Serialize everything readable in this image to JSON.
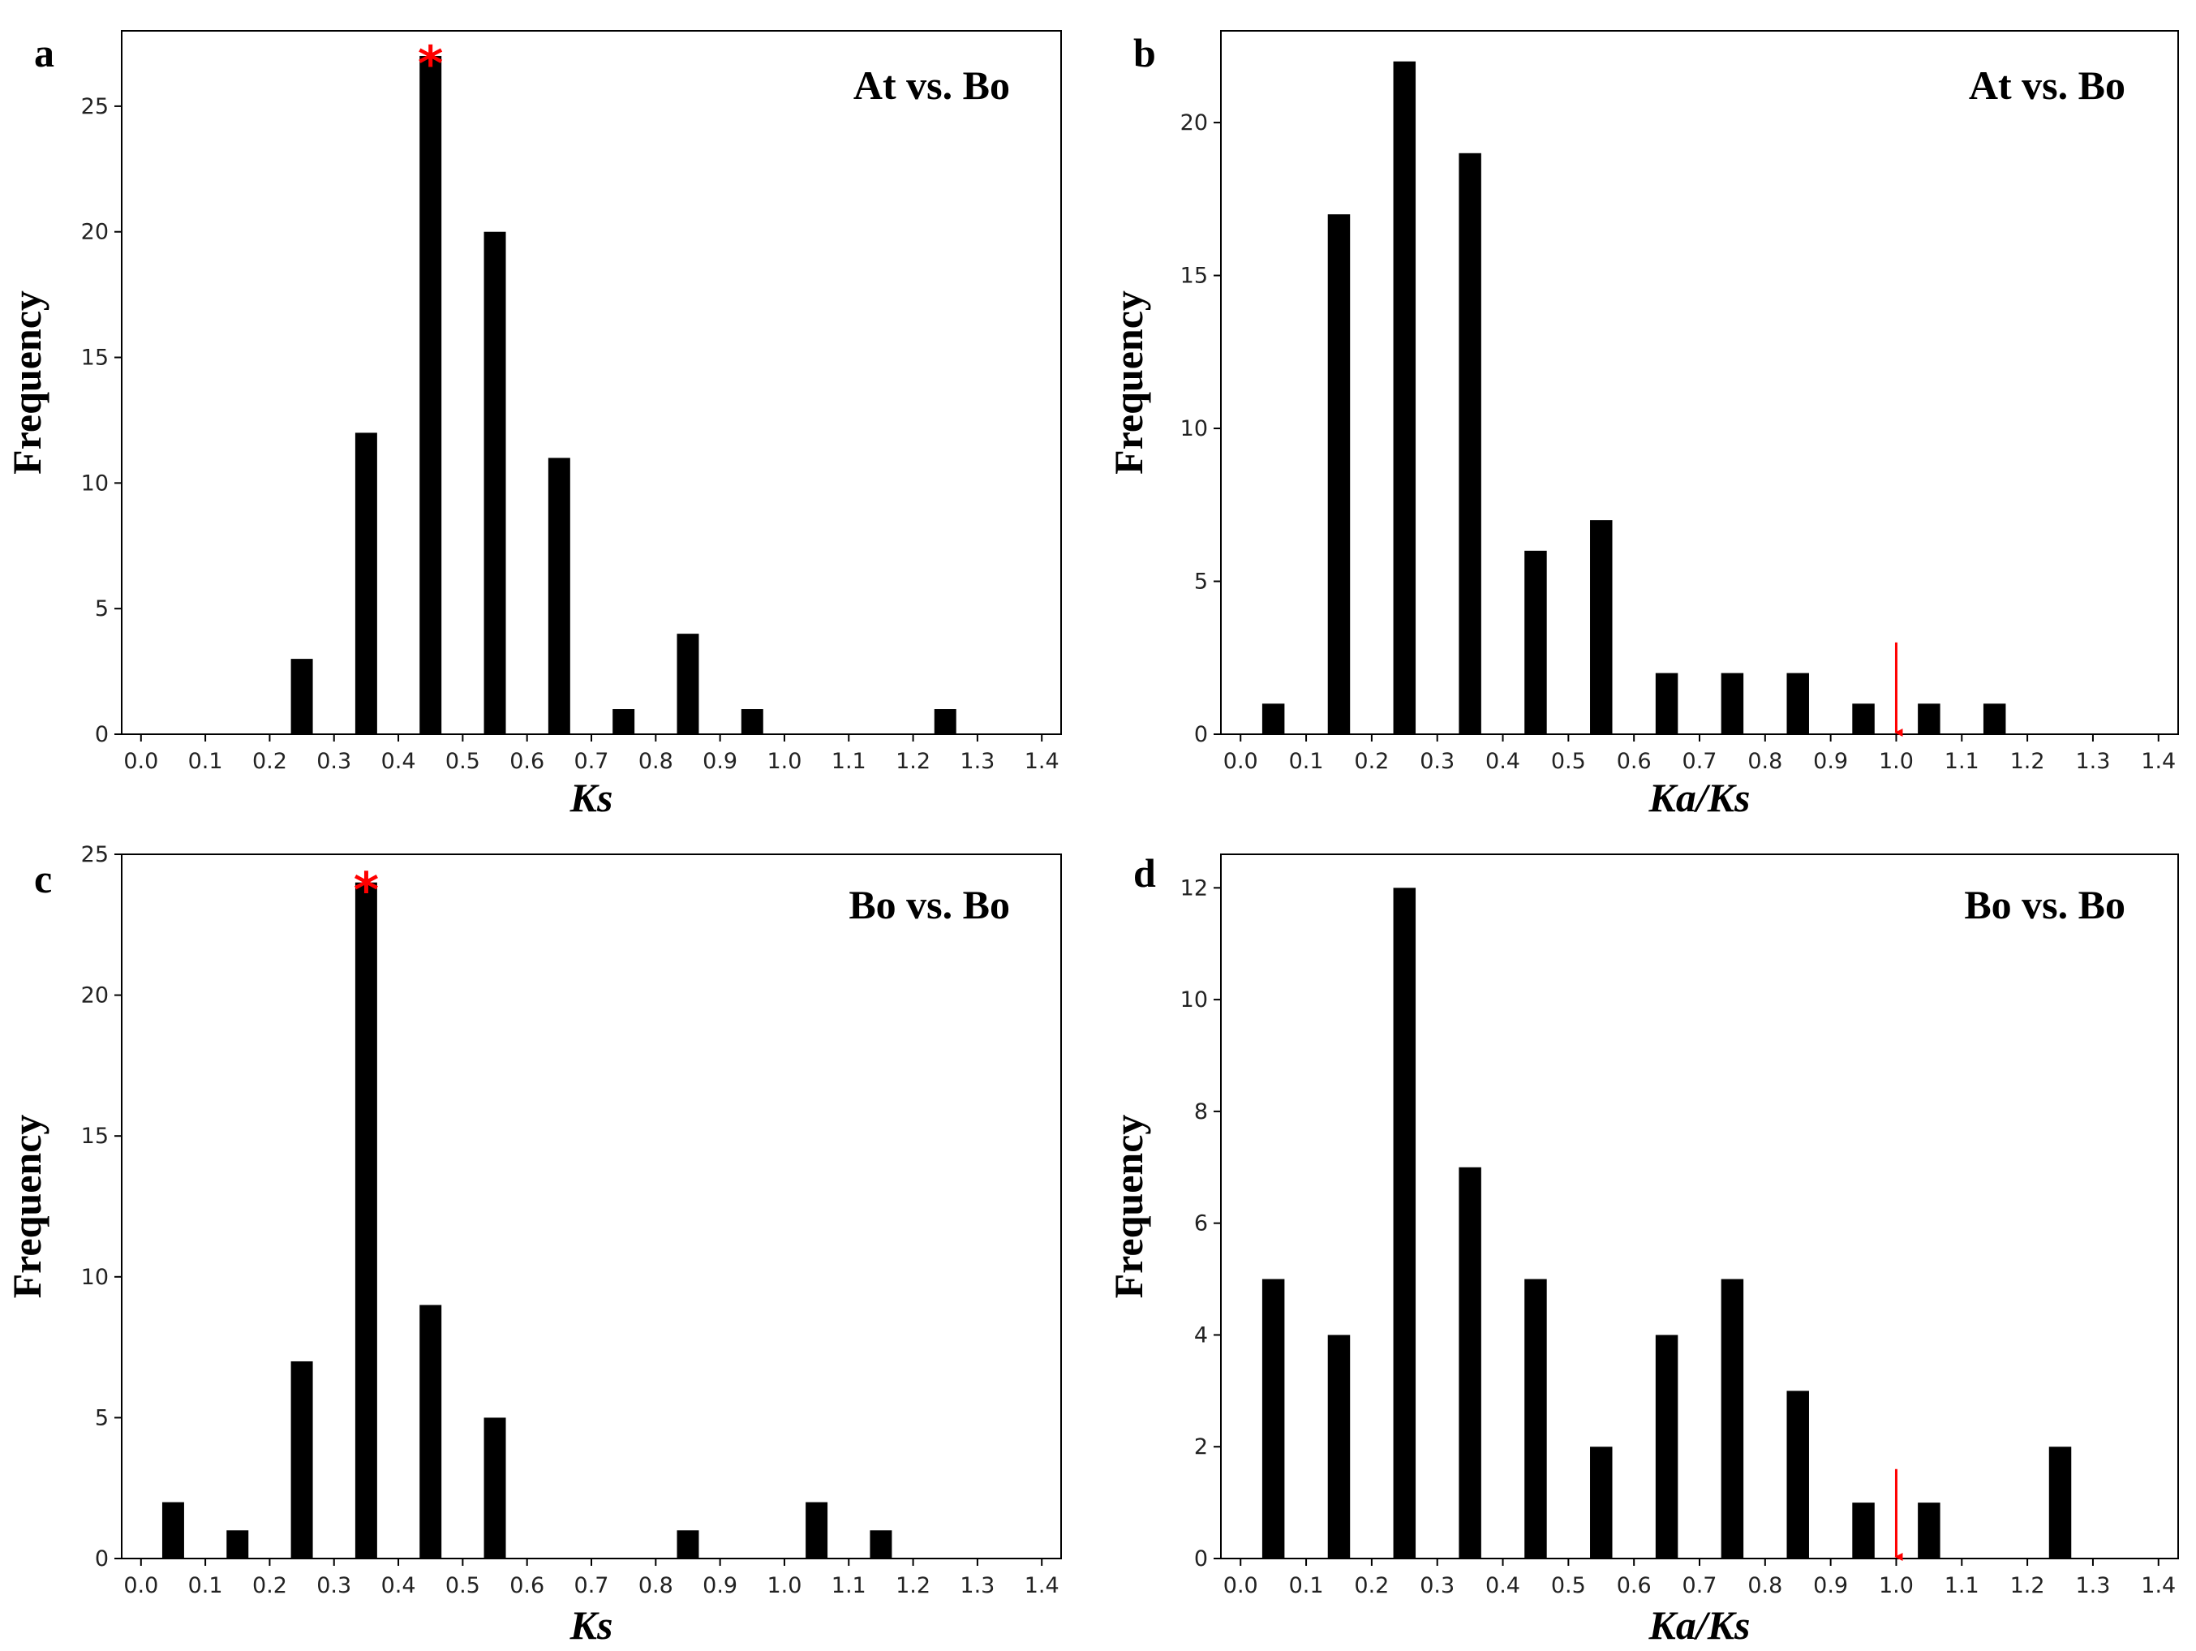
{
  "chart_data": [
    {
      "panel": "a",
      "type": "bar",
      "annotation": "At vs. Bo",
      "xlabel": "Ks",
      "ylabel": "Frequency",
      "x": [
        0.25,
        0.35,
        0.45,
        0.55,
        0.65,
        0.75,
        0.85,
        0.95,
        1.25
      ],
      "values": [
        3,
        12,
        27,
        20,
        11,
        1,
        4,
        1,
        1
      ],
      "xlim": [
        -0.03,
        1.43
      ],
      "ylim": [
        0,
        28
      ],
      "xticks": [
        0.0,
        0.1,
        0.2,
        0.3,
        0.4,
        0.5,
        0.6,
        0.7,
        0.8,
        0.9,
        1.0,
        1.1,
        1.2,
        1.3,
        1.4
      ],
      "yticks": [
        0,
        5,
        10,
        15,
        20,
        25
      ],
      "marker": {
        "type": "star",
        "label": "*",
        "x": 0.45
      }
    },
    {
      "panel": "b",
      "type": "bar",
      "annotation": "At vs. Bo",
      "xlabel": "Ka/Ks",
      "ylabel": "Frequency",
      "x": [
        0.05,
        0.15,
        0.25,
        0.35,
        0.45,
        0.55,
        0.65,
        0.75,
        0.85,
        0.95,
        1.05,
        1.15
      ],
      "values": [
        1,
        17,
        22,
        19,
        6,
        7,
        2,
        2,
        2,
        1,
        1,
        1
      ],
      "xlim": [
        -0.03,
        1.43
      ],
      "ylim": [
        0,
        23
      ],
      "xticks": [
        0.0,
        0.1,
        0.2,
        0.3,
        0.4,
        0.5,
        0.6,
        0.7,
        0.8,
        0.9,
        1.0,
        1.1,
        1.2,
        1.3,
        1.4
      ],
      "yticks": [
        0,
        5,
        10,
        15,
        20
      ],
      "marker": {
        "type": "arrow",
        "x": 1.0,
        "from": 3.0,
        "to": 0.0
      }
    },
    {
      "panel": "c",
      "type": "bar",
      "annotation": "Bo vs. Bo",
      "xlabel": "Ks",
      "ylabel": "Frequency",
      "x": [
        0.05,
        0.15,
        0.25,
        0.35,
        0.45,
        0.55,
        0.85,
        1.05,
        1.15
      ],
      "values": [
        2,
        1,
        7,
        24,
        9,
        5,
        1,
        2,
        1
      ],
      "xlim": [
        -0.03,
        1.43
      ],
      "ylim": [
        0,
        25
      ],
      "xticks": [
        0.0,
        0.1,
        0.2,
        0.3,
        0.4,
        0.5,
        0.6,
        0.7,
        0.8,
        0.9,
        1.0,
        1.1,
        1.2,
        1.3,
        1.4
      ],
      "yticks": [
        0,
        5,
        10,
        15,
        20,
        25
      ],
      "marker": {
        "type": "star",
        "label": "*",
        "x": 0.35
      }
    },
    {
      "panel": "d",
      "type": "bar",
      "annotation": "Bo vs. Bo",
      "xlabel": "Ka/Ks",
      "ylabel": "Frequency",
      "x": [
        0.05,
        0.15,
        0.25,
        0.35,
        0.45,
        0.55,
        0.65,
        0.75,
        0.85,
        0.95,
        1.05,
        1.25
      ],
      "values": [
        5,
        4,
        12,
        7,
        5,
        2,
        4,
        5,
        3,
        1,
        1,
        2
      ],
      "xlim": [
        -0.03,
        1.43
      ],
      "ylim": [
        0,
        12.6
      ],
      "xticks": [
        0.0,
        0.1,
        0.2,
        0.3,
        0.4,
        0.5,
        0.6,
        0.7,
        0.8,
        0.9,
        1.0,
        1.1,
        1.2,
        1.3,
        1.4
      ],
      "yticks": [
        0,
        2,
        4,
        6,
        8,
        10,
        12
      ],
      "marker": {
        "type": "arrow",
        "x": 1.0,
        "from": 1.6,
        "to": 0.0
      }
    }
  ]
}
